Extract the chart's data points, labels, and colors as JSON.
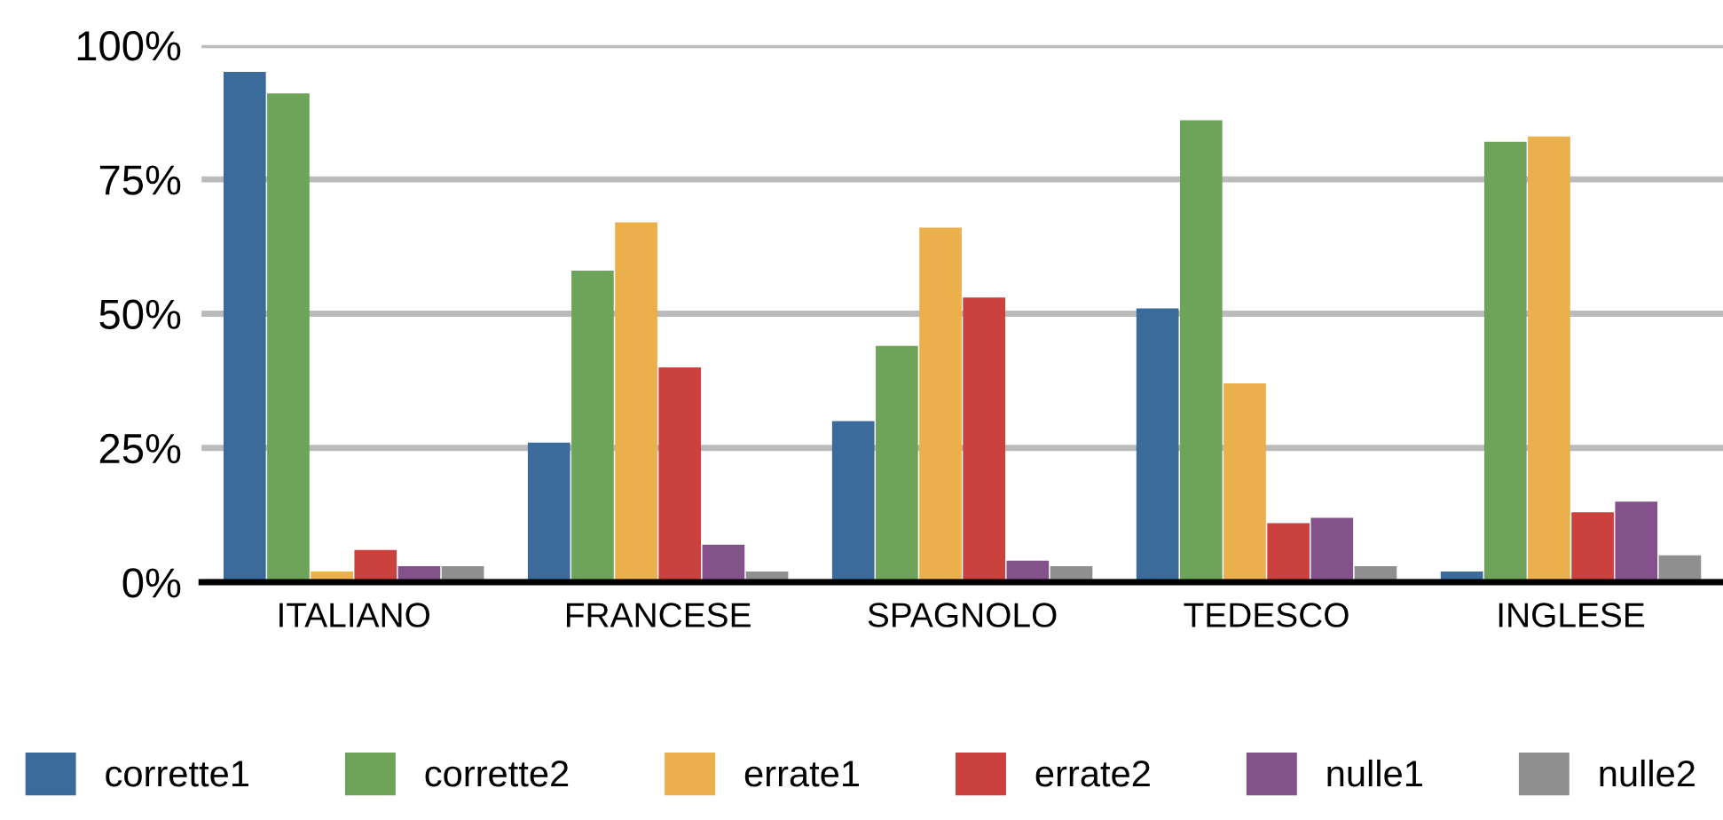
{
  "chart_data": {
    "type": "bar",
    "categories": [
      "ITALIANO",
      "FRANCESE",
      "SPAGNOLO",
      "TEDESCO",
      "INGLESE"
    ],
    "series": [
      {
        "name": "corrette1",
        "color": "#3b6b9a",
        "values": [
          95,
          26,
          30,
          51,
          2
        ]
      },
      {
        "name": "corrette2",
        "color": "#6ea45a",
        "values": [
          91,
          58,
          44,
          86,
          82
        ]
      },
      {
        "name": "errate1",
        "color": "#ebaf4c",
        "values": [
          2,
          67,
          66,
          37,
          83
        ]
      },
      {
        "name": "errate2",
        "color": "#ca413e",
        "values": [
          6,
          40,
          53,
          11,
          13
        ]
      },
      {
        "name": "nulle1",
        "color": "#83528b",
        "values": [
          3,
          7,
          4,
          12,
          15
        ]
      },
      {
        "name": "nulle2",
        "color": "#8f8f8f",
        "values": [
          3,
          2,
          3,
          3,
          5
        ]
      }
    ],
    "ylim": [
      0,
      100
    ],
    "yticks": [
      {
        "value": 0,
        "label": "0%"
      },
      {
        "value": 25,
        "label": "25%"
      },
      {
        "value": 50,
        "label": "50%"
      },
      {
        "value": 75,
        "label": "75%"
      },
      {
        "value": 100,
        "label": "100%"
      }
    ],
    "grid": "y",
    "legend": "bottom"
  }
}
